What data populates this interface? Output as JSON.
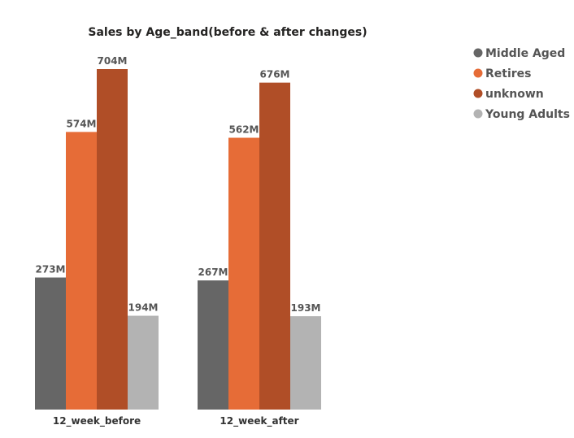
{
  "chart_data": {
    "type": "bar",
    "title": "Sales by Age_band(before & after changes)",
    "xlabel": "",
    "ylabel": "",
    "categories": [
      "12_week_before",
      "12_week_after"
    ],
    "series": [
      {
        "name": "Middle Aged",
        "color": "#666666",
        "values": [
          273,
          267
        ],
        "labels": [
          "273M",
          "267M"
        ]
      },
      {
        "name": "Retires",
        "color": "#E66C37",
        "values": [
          574,
          562
        ],
        "labels": [
          "574M",
          "562M"
        ]
      },
      {
        "name": "unknown",
        "color": "#B04E27",
        "values": [
          704,
          676
        ],
        "labels": [
          "704M",
          "676M"
        ]
      },
      {
        "name": "Young Adults",
        "color": "#B3B3B3",
        "values": [
          194,
          193
        ],
        "labels": [
          "194M",
          "193M"
        ]
      }
    ],
    "ylim": [
      0,
      704
    ],
    "grid": false,
    "legend": "top-right"
  }
}
